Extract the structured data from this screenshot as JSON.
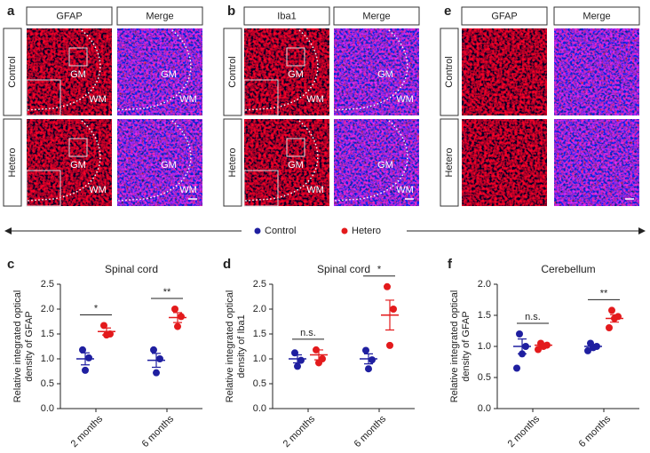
{
  "images": [
    {
      "label": "a",
      "columns": [
        "GFAP",
        "Merge"
      ],
      "rows": [
        "Control",
        "Hetero"
      ],
      "regions": [
        "GM",
        "WM"
      ]
    },
    {
      "label": "b",
      "columns": [
        "Iba1",
        "Merge"
      ],
      "rows": [
        "Control",
        "Hetero"
      ],
      "regions": [
        "GM",
        "WM"
      ]
    },
    {
      "label": "e",
      "columns": [
        "GFAP",
        "Merge"
      ],
      "rows": [
        "Control",
        "Hetero"
      ]
    }
  ],
  "chart_data": [
    {
      "type": "dot",
      "label": "c",
      "title": "Spinal cord",
      "ylabel": [
        "Relative integrated optical",
        "density of GFAP"
      ],
      "categories": [
        "2 months",
        "6 months"
      ],
      "ylim": [
        0,
        2.5
      ],
      "yticks": [
        {
          "value": 0,
          "label": "0.0"
        },
        0.5,
        {
          "value": 1,
          "label": "1.0"
        },
        1.5,
        {
          "value": 2,
          "label": "2.0"
        },
        2.5
      ],
      "series": [
        {
          "name": "Control",
          "color": "#1f1fa0",
          "values": [
            [
              1.18,
              1.02,
              0.77
            ],
            [
              1.18,
              1.0,
              0.72
            ]
          ],
          "mean": [
            1.0,
            0.97
          ],
          "sem": [
            0.12,
            0.14
          ]
        },
        {
          "name": "Hetero",
          "color": "#e31a1c",
          "values": [
            [
              1.67,
              1.5,
              1.48
            ],
            [
              2.0,
              1.85,
              1.65
            ]
          ],
          "mean": [
            1.55,
            1.83
          ],
          "sem": [
            0.07,
            0.1
          ]
        }
      ],
      "annotations": [
        {
          "text": "*",
          "category": 0
        },
        {
          "text": "**",
          "category": 1
        }
      ]
    },
    {
      "type": "dot",
      "label": "d",
      "title": "Spinal cord",
      "ylabel": [
        "Relative integrated optical",
        "density of Iba1"
      ],
      "categories": [
        "2 months",
        "6 months"
      ],
      "ylim": [
        0,
        2.5
      ],
      "yticks": [
        {
          "value": 0,
          "label": "0.0"
        },
        0.5,
        {
          "value": 1,
          "label": "1.0"
        },
        1.5,
        {
          "value": 2,
          "label": "2.0"
        },
        2.5
      ],
      "series": [
        {
          "name": "Control",
          "color": "#1f1fa0",
          "values": [
            [
              1.12,
              0.97,
              0.85
            ],
            [
              1.17,
              0.98,
              0.8
            ]
          ],
          "mean": [
            1.0,
            1.0
          ],
          "sem": [
            0.08,
            0.1
          ]
        },
        {
          "name": "Hetero",
          "color": "#e31a1c",
          "values": [
            [
              1.18,
              1.0,
              0.92
            ],
            [
              2.45,
              2.0,
              1.27
            ]
          ],
          "mean": [
            1.08,
            1.88
          ],
          "sem": [
            0.1,
            0.3
          ]
        }
      ],
      "annotations": [
        {
          "text": "n.s.",
          "category": 0
        },
        {
          "text": "*",
          "category": 1
        }
      ]
    },
    {
      "type": "dot",
      "label": "f",
      "title": "Cerebellum",
      "ylabel": [
        "Relative integrated optical",
        "density of GFAP"
      ],
      "categories": [
        "2 months",
        "6 months"
      ],
      "ylim": [
        0,
        2
      ],
      "yticks": [
        {
          "value": 0,
          "label": "0.0"
        },
        0.5,
        {
          "value": 1,
          "label": "1.0"
        },
        1.5,
        {
          "value": 2,
          "label": "2.0"
        }
      ],
      "series": [
        {
          "name": "Control",
          "color": "#1f1fa0",
          "values": [
            [
              1.2,
              1.0,
              0.88,
              0.65
            ],
            [
              1.05,
              1.0,
              0.98,
              0.93
            ]
          ],
          "mean": [
            1.0,
            1.0
          ],
          "sem": [
            0.12,
            0.03
          ]
        },
        {
          "name": "Hetero",
          "color": "#e31a1c",
          "values": [
            [
              1.05,
              1.02,
              1.0,
              0.95
            ],
            [
              1.58,
              1.48,
              1.45,
              1.3
            ]
          ],
          "mean": [
            1.02,
            1.45
          ],
          "sem": [
            0.03,
            0.06
          ]
        }
      ],
      "annotations": [
        {
          "text": "n.s.",
          "category": 0
        },
        {
          "text": "**",
          "category": 1
        }
      ]
    }
  ]
}
